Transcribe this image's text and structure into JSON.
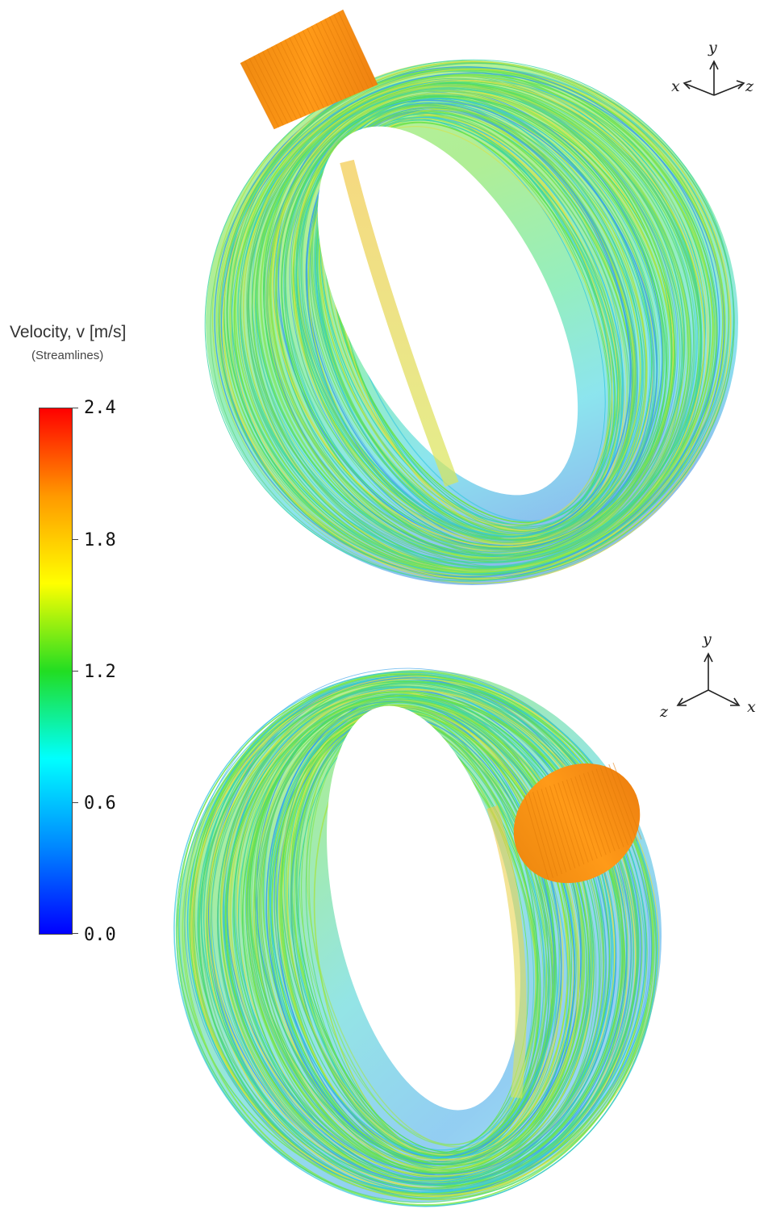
{
  "legend": {
    "title": "Velocity, v [m/s]",
    "subtitle": "(Streamlines)",
    "ticks": [
      "2.4",
      "1.8",
      "1.2",
      "0.6",
      "0.0"
    ],
    "colors": [
      "#ff0000",
      "#ff9900",
      "#ffff00",
      "#22dd22",
      "#00ffff",
      "#0088ff",
      "#0000ff"
    ]
  },
  "views": [
    {
      "axes": {
        "left": "x",
        "up": "y",
        "right": "z"
      }
    },
    {
      "axes": {
        "left": "z",
        "up": "y",
        "right": "x"
      }
    }
  ]
}
